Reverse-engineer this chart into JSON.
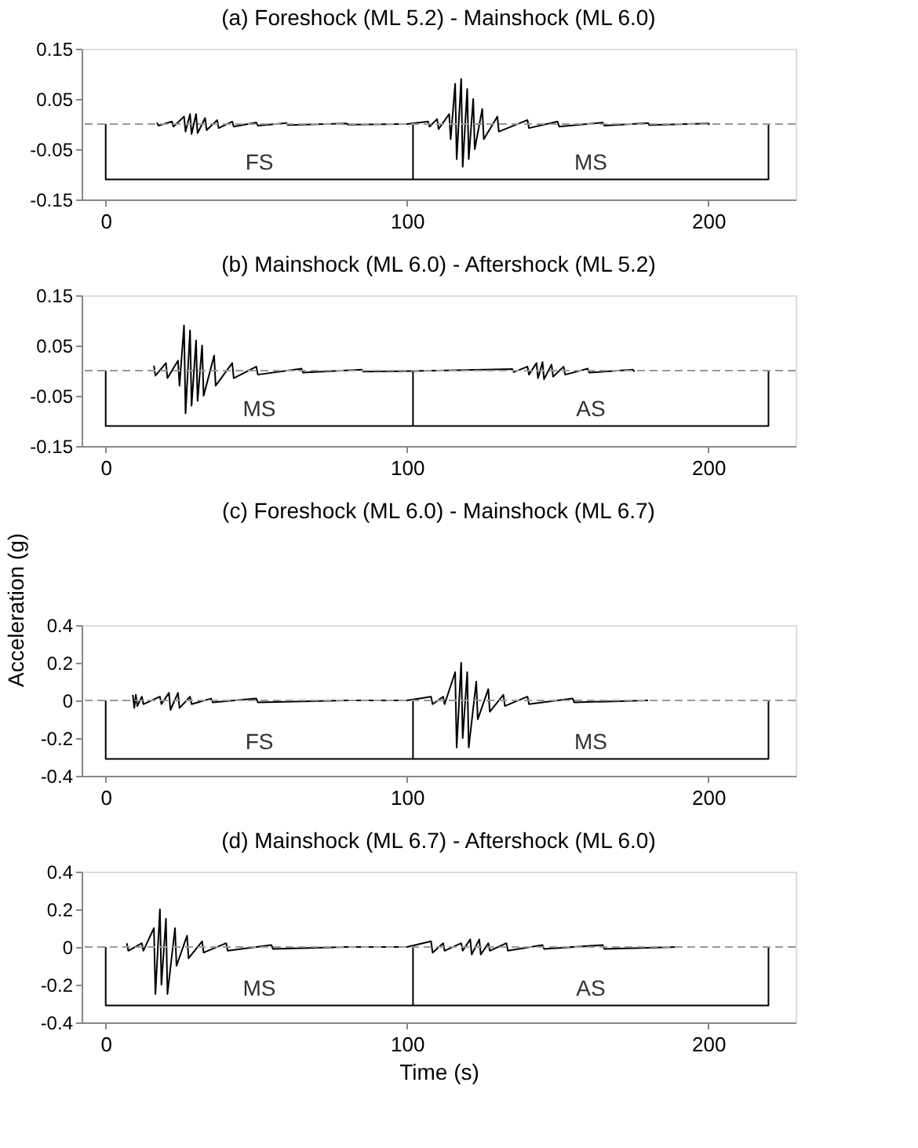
{
  "chart_data": [
    {
      "type": "line",
      "title": "(a) Foreshock (ML 5.2) - Mainshock (ML 6.0)",
      "xlim": [
        -8,
        229
      ],
      "xticks": [
        0,
        100,
        200
      ],
      "ylim": [
        -0.15,
        0.15
      ],
      "yticks": [
        -0.15,
        -0.05,
        0.05,
        0.15
      ],
      "series": [
        {
          "color": "#000000",
          "x": [
            17,
            17.5,
            22,
            22.5,
            26,
            26.5,
            28,
            28.5,
            30,
            30.5,
            33,
            33.5,
            37,
            37.5,
            42,
            42.5,
            50,
            50.5,
            60,
            60.5,
            80,
            80.5,
            100,
            107,
            107.5,
            110,
            110.5,
            114,
            114.5,
            116,
            116.5,
            118,
            118.5,
            120,
            120.5,
            122,
            122.5,
            125,
            125.5,
            130,
            130.5,
            140,
            140.5,
            150,
            150.5,
            165,
            165.5,
            180,
            180.5,
            200,
            200.5
          ],
          "values": [
            0.003,
            -0.003,
            0.005,
            -0.005,
            0.015,
            -0.015,
            0.02,
            -0.02,
            0.02,
            -0.018,
            0.012,
            -0.012,
            0.008,
            -0.008,
            0.005,
            -0.005,
            0.003,
            -0.003,
            0.002,
            -0.002,
            0.001,
            -0.001,
            0,
            0.005,
            -0.005,
            0.01,
            -0.01,
            0.02,
            -0.03,
            0.08,
            -0.07,
            0.09,
            -0.085,
            0.07,
            -0.07,
            0.05,
            -0.05,
            0.03,
            -0.03,
            0.015,
            -0.015,
            0.008,
            -0.008,
            0.005,
            -0.005,
            0.003,
            -0.003,
            0.002,
            -0.002,
            0.001,
            -0.001
          ]
        },
        {
          "color": "#000000",
          "x": [
            0,
            0,
            220,
            220
          ],
          "values": [
            0,
            -0.11,
            -0.11,
            0
          ]
        },
        {
          "color": "#000000",
          "x": [
            102,
            102
          ],
          "values": [
            -0.11,
            0
          ]
        }
      ],
      "ref_lines": [
        {
          "axis": "y",
          "value": 0,
          "color": "#999999",
          "line_style": "dashed"
        }
      ],
      "annotations": [
        "FS",
        "MS"
      ]
    },
    {
      "type": "line",
      "title": "(b) Mainshock (ML 6.0) - Aftershock (ML 5.2)",
      "xlim": [
        -8,
        229
      ],
      "xticks": [
        0,
        100,
        200
      ],
      "ylim": [
        -0.15,
        0.15
      ],
      "yticks": [
        -0.15,
        -0.05,
        0.05,
        0.15
      ],
      "series": [
        {
          "color": "#000000",
          "x": [
            16,
            16.5,
            20,
            20.5,
            24,
            24.5,
            26,
            26.5,
            28,
            28.5,
            30,
            30.5,
            32,
            32.5,
            36,
            36.5,
            42,
            42.5,
            50,
            50.5,
            65,
            65.5,
            85,
            85.5,
            110,
            135,
            135.5,
            140,
            140.5,
            143,
            143.5,
            145,
            145.5,
            148,
            148.5,
            152,
            152.5,
            160,
            160.5,
            175,
            175.5
          ],
          "values": [
            0.01,
            -0.01,
            0.015,
            -0.015,
            0.02,
            -0.03,
            0.09,
            -0.085,
            0.08,
            -0.07,
            0.06,
            -0.06,
            0.05,
            -0.05,
            0.03,
            -0.03,
            0.015,
            -0.015,
            0.008,
            -0.008,
            0.004,
            -0.004,
            0.002,
            -0.002,
            0,
            0.003,
            -0.003,
            0.008,
            -0.008,
            0.015,
            -0.015,
            0.017,
            -0.017,
            0.012,
            -0.012,
            0.008,
            -0.008,
            0.004,
            -0.004,
            0.002,
            -0.002
          ]
        },
        {
          "color": "#000000",
          "x": [
            0,
            0,
            220,
            220
          ],
          "values": [
            0,
            -0.11,
            -0.11,
            0
          ]
        },
        {
          "color": "#000000",
          "x": [
            102,
            102
          ],
          "values": [
            -0.11,
            0
          ]
        }
      ],
      "ref_lines": [
        {
          "axis": "y",
          "value": 0,
          "color": "#999999",
          "line_style": "dashed"
        }
      ],
      "annotations": [
        "MS",
        "AS"
      ]
    },
    {
      "type": "line",
      "title": "(c) Foreshock (ML 6.0) - Mainshock (ML 6.7)",
      "ylabel": "Acceleration (g)",
      "xlim": [
        -8,
        229
      ],
      "xticks": [
        0,
        100,
        200
      ],
      "ylim": [
        -0.4,
        0.4
      ],
      "yticks": [
        -0.4,
        -0.2,
        0,
        0.2,
        0.4
      ],
      "series": [
        {
          "color": "#000000",
          "x": [
            9,
            9.5,
            10,
            10.5,
            12,
            12.5,
            18,
            18.5,
            21,
            21.5,
            24,
            24.5,
            28,
            28.5,
            35,
            35.5,
            50,
            50.5,
            80,
            100,
            108,
            108.5,
            112,
            112.5,
            116,
            116.5,
            118,
            118.5,
            120,
            120.5,
            123,
            123.5,
            127,
            127.5,
            132,
            132.5,
            140,
            140.5,
            155,
            155.5,
            180
          ],
          "values": [
            0.03,
            -0.04,
            0.03,
            -0.03,
            0.02,
            -0.02,
            0.02,
            -0.02,
            0.04,
            -0.05,
            0.04,
            -0.04,
            0.02,
            -0.02,
            0.01,
            -0.01,
            0.01,
            -0.01,
            0,
            0,
            0.02,
            -0.02,
            0.02,
            -0.02,
            0.15,
            -0.25,
            0.2,
            -0.2,
            0.15,
            -0.25,
            0.1,
            -0.1,
            0.06,
            -0.06,
            0.03,
            -0.03,
            0.02,
            -0.02,
            0.01,
            -0.01,
            0
          ]
        },
        {
          "color": "#000000",
          "x": [
            0,
            0,
            220,
            220
          ],
          "values": [
            0,
            -0.31,
            -0.31,
            0
          ]
        },
        {
          "color": "#000000",
          "x": [
            102,
            102
          ],
          "values": [
            -0.31,
            0
          ]
        }
      ],
      "ref_lines": [
        {
          "axis": "y",
          "value": 0,
          "color": "#999999",
          "line_style": "dashed"
        }
      ],
      "annotations": [
        "FS",
        "MS"
      ]
    },
    {
      "type": "line",
      "title": "(d) Mainshock (ML 6.7) - Aftershock (ML 6.0)",
      "xlabel": "Time (s)",
      "xlim": [
        -8,
        229
      ],
      "xticks": [
        0,
        100,
        200
      ],
      "ylim": [
        -0.4,
        0.4
      ],
      "yticks": [
        -0.4,
        -0.2,
        0,
        0.2,
        0.4
      ],
      "series": [
        {
          "color": "#000000",
          "x": [
            7,
            7.5,
            12,
            12.5,
            16,
            16.5,
            18,
            18.5,
            20,
            20.5,
            23,
            23.5,
            27,
            27.5,
            32,
            32.5,
            40,
            40.5,
            55,
            55.5,
            80,
            100,
            108,
            108.5,
            112,
            112.5,
            118,
            118.5,
            121,
            121.5,
            124,
            124.5,
            127,
            127.5,
            133,
            133.5,
            145,
            145.5,
            165,
            165.5,
            190
          ],
          "values": [
            0.02,
            -0.02,
            0.02,
            -0.02,
            0.1,
            -0.25,
            0.2,
            -0.2,
            0.15,
            -0.25,
            0.1,
            -0.1,
            0.06,
            -0.06,
            0.03,
            -0.03,
            0.02,
            -0.02,
            0.01,
            -0.01,
            0,
            0,
            0.03,
            -0.03,
            0.02,
            -0.02,
            0.02,
            -0.02,
            0.04,
            -0.04,
            0.04,
            -0.04,
            0.02,
            -0.02,
            0.02,
            -0.02,
            0.01,
            -0.01,
            0.01,
            -0.01,
            0
          ]
        },
        {
          "color": "#000000",
          "x": [
            0,
            0,
            220,
            220
          ],
          "values": [
            0,
            -0.31,
            -0.31,
            0
          ]
        },
        {
          "color": "#000000",
          "x": [
            102,
            102
          ],
          "values": [
            -0.31,
            0
          ]
        }
      ],
      "ref_lines": [
        {
          "axis": "y",
          "value": 0,
          "color": "#999999",
          "line_style": "dashed"
        }
      ],
      "annotations": [
        "MS",
        "AS"
      ]
    }
  ]
}
